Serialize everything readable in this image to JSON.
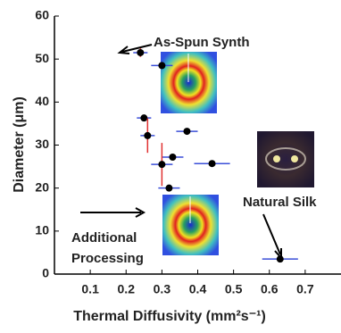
{
  "chart_data": {
    "type": "scatter",
    "xlabel": "Thermal Diffusivity (mm²s⁻¹)",
    "ylabel": "Diameter (μm)",
    "xlim": [
      0,
      0.8
    ],
    "ylim": [
      0,
      60
    ],
    "xticks": [
      0.1,
      0.2,
      0.3,
      0.4,
      0.5,
      0.6,
      0.7
    ],
    "yticks": [
      0,
      10,
      20,
      30,
      40,
      50,
      60
    ],
    "color": "#000000",
    "xerr_color": "#3b4fd8",
    "yerr_color": "#e03030",
    "x": [
      0.24,
      0.3,
      0.25,
      0.26,
      0.37,
      0.33,
      0.3,
      0.44,
      0.32,
      0.63
    ],
    "values": [
      51.5,
      48.5,
      36.3,
      32.2,
      33.2,
      27.2,
      25.5,
      25.7,
      20,
      3.5
    ],
    "xerr": [
      0.02,
      0.03,
      0.02,
      0.02,
      0.03,
      0.03,
      0.03,
      0.05,
      0.03,
      0.05
    ],
    "yerr": [
      1,
      null,
      null,
      4,
      null,
      null,
      5,
      null,
      null,
      null
    ],
    "annotations": [
      "As-Spun Synth",
      "Natural Silk",
      "Additional",
      "Processing"
    ]
  }
}
